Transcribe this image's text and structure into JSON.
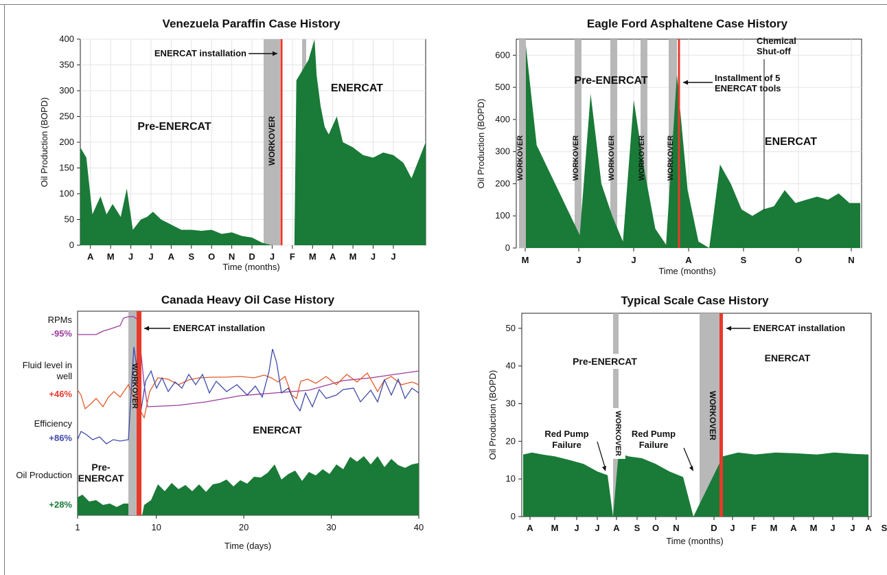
{
  "colors": {
    "fill": "#1a7a38",
    "red": "#e8392b",
    "gray": "#b8b8b8",
    "purple": "#9b3a9b",
    "blue": "#3f4aa8",
    "orange": "#e25a2a",
    "green_text": "#1a7a38"
  },
  "chart_data": [
    {
      "type": "area",
      "title": "Venezuela Paraffin Case History",
      "xlabel": "Time (months)",
      "ylabel": "Oil Production (BOPD)",
      "ylim": [
        0,
        400
      ],
      "yticks": [
        0,
        50,
        100,
        150,
        200,
        250,
        300,
        350,
        400
      ],
      "xtick_labels": [
        "A",
        "M",
        "J",
        "J",
        "A",
        "S",
        "O",
        "N",
        "D",
        "J",
        "F",
        "M",
        "A",
        "M",
        "J",
        "J"
      ],
      "x": [
        0,
        0.3,
        0.6,
        1,
        1.3,
        1.6,
        2,
        2.3,
        2.6,
        3,
        3.3,
        3.6,
        4,
        4.5,
        5,
        5.5,
        6,
        6.5,
        7,
        7.5,
        8,
        8.5,
        9,
        9.5,
        9.9,
        10.6,
        10.7,
        11,
        11.3,
        11.6,
        11.7,
        11.9,
        12.1,
        12.3,
        12.7,
        13,
        13.5,
        14,
        14.5,
        15,
        15.5,
        16,
        16.4,
        16.8,
        17.1
      ],
      "series": [
        {
          "values": [
            190,
            170,
            60,
            95,
            60,
            80,
            55,
            110,
            30,
            50,
            55,
            65,
            50,
            40,
            30,
            30,
            28,
            30,
            22,
            25,
            18,
            15,
            5,
            0,
            0,
            0,
            320,
            340,
            360,
            400,
            330,
            270,
            230,
            215,
            250,
            200,
            190,
            175,
            170,
            180,
            175,
            160,
            130,
            170,
            200
          ]
        }
      ],
      "annotations": [
        "ENERCAT installation",
        "Pre-ENERCAT",
        "ENERCAT",
        "WORKOVER"
      ]
    },
    {
      "type": "area",
      "title": "Eagle Ford Asphaltene Case History",
      "xlabel": "Time (months)",
      "ylabel": "Oil Production (BOPD)",
      "ylim": [
        0,
        650
      ],
      "yticks": [
        0,
        100,
        200,
        300,
        400,
        500,
        600
      ],
      "xtick_labels": [
        "M",
        "J",
        "J",
        "A",
        "S",
        "O",
        "N"
      ],
      "series": [
        {
          "values": [
            630,
            320,
            250,
            180,
            110,
            40,
            480,
            200,
            100,
            20,
            460,
            240,
            60,
            10,
            540,
            180,
            20,
            0,
            260,
            200,
            120,
            100,
            120,
            130,
            180,
            140,
            150,
            160,
            150,
            170,
            140,
            140
          ]
        }
      ],
      "annotations": [
        "Chemical Shut-off",
        "Pre-ENERCAT",
        "Installment of 5 ENERCAT tools",
        "ENERCAT",
        "WORKOVER"
      ]
    },
    {
      "type": "line",
      "title": "Canada Heavy Oil Case History",
      "xlabel": "Time (days)",
      "xlim": [
        1,
        40
      ],
      "xticks": [
        1,
        10,
        20,
        30,
        40
      ],
      "series": [
        {
          "name": "RPMs",
          "change": "-95%"
        },
        {
          "name": "Fluid level in well",
          "change": "+46%"
        },
        {
          "name": "Efficiency",
          "change": "+86%"
        },
        {
          "name": "Oil Production",
          "change": "+28%"
        }
      ],
      "annotations": [
        "ENERCAT installation",
        "ENERCAT",
        "Pre-ENERCAT",
        "WORKOVER"
      ]
    },
    {
      "type": "area",
      "title": "Typical Scale Case History",
      "xlabel": "Time (months)",
      "ylabel": "Oil Production (BOPD)",
      "ylim": [
        0,
        54
      ],
      "yticks": [
        0,
        10,
        20,
        30,
        40,
        50
      ],
      "xtick_labels": [
        "A",
        "M",
        "J",
        "J",
        "A",
        "S",
        "O",
        "N",
        "D",
        "J",
        "F",
        "M",
        "A",
        "M",
        "J",
        "J",
        "A",
        "S"
      ],
      "series": [
        {
          "values": [
            16.5,
            17,
            16.5,
            16,
            15,
            14,
            12,
            11,
            0,
            17,
            16,
            15.5,
            14,
            12,
            10.5,
            0,
            16,
            17,
            16.5,
            17,
            16.8,
            16.5,
            17,
            16.7,
            16.5
          ]
        }
      ],
      "annotations": [
        "ENERCAT installation",
        "Pre-ENERCAT",
        "ENERCAT",
        "Red Pump Failure",
        "Red Pump Failure",
        "WORKOVER",
        "WORKOVER"
      ]
    }
  ]
}
